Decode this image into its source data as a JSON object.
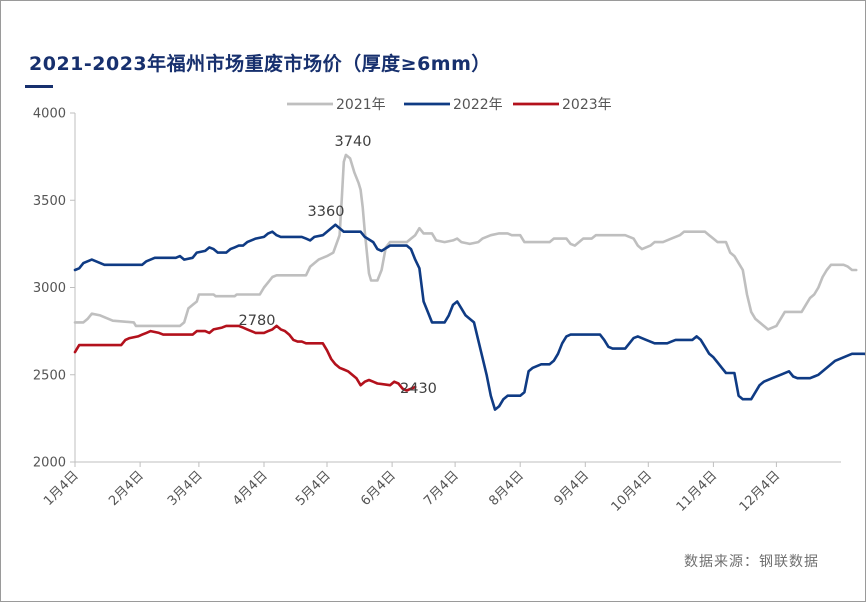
{
  "title": "2021-2023年福州市场重废市场价（厚度≥6mm）",
  "source": "数据来源：钢联数据",
  "chart_data": {
    "type": "line",
    "ylim": [
      2000,
      4000
    ],
    "yticks": [
      2000,
      2500,
      3000,
      3500,
      4000
    ],
    "x_range_days": [
      0,
      362
    ],
    "x_ticks": [
      {
        "day": 0,
        "label": "1月4日"
      },
      {
        "day": 31,
        "label": "2月4日"
      },
      {
        "day": 59,
        "label": "3月4日"
      },
      {
        "day": 90,
        "label": "4月4日"
      },
      {
        "day": 120,
        "label": "5月4日"
      },
      {
        "day": 151,
        "label": "6月4日"
      },
      {
        "day": 181,
        "label": "7月4日"
      },
      {
        "day": 212,
        "label": "8月4日"
      },
      {
        "day": 243,
        "label": "9月4日"
      },
      {
        "day": 273,
        "label": "10月4日"
      },
      {
        "day": 304,
        "label": "11月4日"
      },
      {
        "day": 334,
        "label": "12月4日"
      }
    ],
    "legend_position": "top",
    "series": [
      {
        "name": "2021年",
        "color": "#bfbfbf",
        "points": [
          [
            0,
            2800
          ],
          [
            4,
            2800
          ],
          [
            6,
            2820
          ],
          [
            8,
            2850
          ],
          [
            12,
            2840
          ],
          [
            14,
            2830
          ],
          [
            16,
            2820
          ],
          [
            18,
            2810
          ],
          [
            28,
            2800
          ],
          [
            29,
            2780
          ],
          [
            50,
            2780
          ],
          [
            52,
            2800
          ],
          [
            54,
            2880
          ],
          [
            56,
            2900
          ],
          [
            58,
            2920
          ],
          [
            59,
            2960
          ],
          [
            66,
            2960
          ],
          [
            67,
            2950
          ],
          [
            76,
            2950
          ],
          [
            77,
            2960
          ],
          [
            88,
            2960
          ],
          [
            90,
            3000
          ],
          [
            92,
            3030
          ],
          [
            94,
            3060
          ],
          [
            96,
            3070
          ],
          [
            110,
            3070
          ],
          [
            112,
            3120
          ],
          [
            114,
            3140
          ],
          [
            116,
            3160
          ],
          [
            120,
            3180
          ],
          [
            123,
            3200
          ],
          [
            126,
            3300
          ],
          [
            127,
            3500
          ],
          [
            128,
            3720
          ],
          [
            129,
            3760
          ],
          [
            131,
            3740
          ],
          [
            133,
            3660
          ],
          [
            135,
            3600
          ],
          [
            136,
            3560
          ],
          [
            137,
            3460
          ],
          [
            138,
            3320
          ],
          [
            139,
            3200
          ],
          [
            140,
            3080
          ],
          [
            141,
            3040
          ],
          [
            144,
            3040
          ],
          [
            146,
            3100
          ],
          [
            148,
            3230
          ],
          [
            150,
            3260
          ],
          [
            158,
            3260
          ],
          [
            160,
            3280
          ],
          [
            162,
            3300
          ],
          [
            164,
            3340
          ],
          [
            166,
            3310
          ],
          [
            170,
            3310
          ],
          [
            172,
            3270
          ],
          [
            176,
            3260
          ],
          [
            180,
            3270
          ],
          [
            182,
            3280
          ],
          [
            184,
            3260
          ],
          [
            188,
            3250
          ],
          [
            192,
            3260
          ],
          [
            194,
            3280
          ],
          [
            198,
            3300
          ],
          [
            202,
            3310
          ],
          [
            206,
            3310
          ],
          [
            208,
            3300
          ],
          [
            212,
            3300
          ],
          [
            214,
            3260
          ],
          [
            226,
            3260
          ],
          [
            228,
            3280
          ],
          [
            234,
            3280
          ],
          [
            236,
            3250
          ],
          [
            238,
            3240
          ],
          [
            240,
            3260
          ],
          [
            242,
            3280
          ],
          [
            246,
            3280
          ],
          [
            248,
            3300
          ],
          [
            260,
            3300
          ],
          [
            262,
            3300
          ],
          [
            266,
            3280
          ],
          [
            268,
            3240
          ],
          [
            270,
            3220
          ],
          [
            274,
            3240
          ],
          [
            276,
            3260
          ],
          [
            280,
            3260
          ],
          [
            284,
            3280
          ],
          [
            288,
            3300
          ],
          [
            290,
            3320
          ],
          [
            296,
            3320
          ],
          [
            300,
            3320
          ],
          [
            302,
            3300
          ],
          [
            304,
            3280
          ],
          [
            306,
            3260
          ],
          [
            310,
            3260
          ],
          [
            312,
            3200
          ],
          [
            314,
            3180
          ],
          [
            316,
            3140
          ],
          [
            318,
            3100
          ],
          [
            320,
            2960
          ],
          [
            322,
            2860
          ],
          [
            324,
            2820
          ],
          [
            326,
            2800
          ],
          [
            328,
            2780
          ],
          [
            330,
            2760
          ],
          [
            334,
            2780
          ],
          [
            336,
            2820
          ],
          [
            338,
            2860
          ],
          [
            346,
            2860
          ],
          [
            348,
            2900
          ],
          [
            350,
            2940
          ],
          [
            352,
            2960
          ],
          [
            354,
            3000
          ],
          [
            356,
            3060
          ],
          [
            358,
            3100
          ],
          [
            360,
            3130
          ],
          [
            362,
            3130
          ],
          [
            366,
            3130
          ],
          [
            368,
            3120
          ],
          [
            370,
            3100
          ],
          [
            372,
            3100
          ]
        ]
      },
      {
        "name": "2022年",
        "color": "#0f3b84",
        "points": [
          [
            0,
            3100
          ],
          [
            2,
            3110
          ],
          [
            4,
            3140
          ],
          [
            6,
            3150
          ],
          [
            8,
            3160
          ],
          [
            10,
            3150
          ],
          [
            12,
            3140
          ],
          [
            14,
            3130
          ],
          [
            32,
            3130
          ],
          [
            34,
            3150
          ],
          [
            36,
            3160
          ],
          [
            38,
            3170
          ],
          [
            48,
            3170
          ],
          [
            50,
            3180
          ],
          [
            52,
            3160
          ],
          [
            56,
            3170
          ],
          [
            58,
            3200
          ],
          [
            62,
            3210
          ],
          [
            64,
            3230
          ],
          [
            66,
            3220
          ],
          [
            68,
            3200
          ],
          [
            72,
            3200
          ],
          [
            74,
            3220
          ],
          [
            76,
            3230
          ],
          [
            78,
            3240
          ],
          [
            80,
            3240
          ],
          [
            82,
            3260
          ],
          [
            86,
            3280
          ],
          [
            90,
            3290
          ],
          [
            92,
            3310
          ],
          [
            94,
            3320
          ],
          [
            96,
            3300
          ],
          [
            98,
            3290
          ],
          [
            108,
            3290
          ],
          [
            110,
            3280
          ],
          [
            112,
            3270
          ],
          [
            114,
            3290
          ],
          [
            118,
            3300
          ],
          [
            120,
            3320
          ],
          [
            122,
            3340
          ],
          [
            124,
            3360
          ],
          [
            126,
            3340
          ],
          [
            128,
            3320
          ],
          [
            136,
            3320
          ],
          [
            138,
            3290
          ],
          [
            142,
            3260
          ],
          [
            144,
            3220
          ],
          [
            146,
            3210
          ],
          [
            150,
            3240
          ],
          [
            158,
            3240
          ],
          [
            160,
            3220
          ],
          [
            162,
            3160
          ],
          [
            164,
            3110
          ],
          [
            166,
            2920
          ],
          [
            168,
            2860
          ],
          [
            170,
            2800
          ],
          [
            176,
            2800
          ],
          [
            178,
            2840
          ],
          [
            180,
            2900
          ],
          [
            182,
            2920
          ],
          [
            184,
            2880
          ],
          [
            186,
            2840
          ],
          [
            188,
            2820
          ],
          [
            190,
            2800
          ],
          [
            192,
            2700
          ],
          [
            194,
            2600
          ],
          [
            196,
            2500
          ],
          [
            198,
            2380
          ],
          [
            200,
            2300
          ],
          [
            202,
            2320
          ],
          [
            204,
            2360
          ],
          [
            206,
            2380
          ],
          [
            212,
            2380
          ],
          [
            214,
            2400
          ],
          [
            216,
            2520
          ],
          [
            218,
            2540
          ],
          [
            222,
            2560
          ],
          [
            226,
            2560
          ],
          [
            228,
            2580
          ],
          [
            230,
            2620
          ],
          [
            232,
            2680
          ],
          [
            234,
            2720
          ],
          [
            236,
            2730
          ],
          [
            250,
            2730
          ],
          [
            252,
            2700
          ],
          [
            254,
            2660
          ],
          [
            256,
            2650
          ],
          [
            262,
            2650
          ],
          [
            264,
            2680
          ],
          [
            266,
            2710
          ],
          [
            268,
            2720
          ],
          [
            272,
            2700
          ],
          [
            276,
            2680
          ],
          [
            282,
            2680
          ],
          [
            284,
            2690
          ],
          [
            286,
            2700
          ],
          [
            294,
            2700
          ],
          [
            296,
            2720
          ],
          [
            298,
            2700
          ],
          [
            300,
            2660
          ],
          [
            302,
            2620
          ],
          [
            304,
            2600
          ],
          [
            306,
            2570
          ],
          [
            308,
            2540
          ],
          [
            310,
            2510
          ],
          [
            314,
            2510
          ],
          [
            316,
            2380
          ],
          [
            318,
            2360
          ],
          [
            322,
            2360
          ],
          [
            324,
            2400
          ],
          [
            326,
            2440
          ],
          [
            328,
            2460
          ],
          [
            332,
            2480
          ],
          [
            336,
            2500
          ],
          [
            340,
            2520
          ],
          [
            342,
            2490
          ],
          [
            344,
            2480
          ],
          [
            350,
            2480
          ],
          [
            352,
            2490
          ],
          [
            354,
            2500
          ],
          [
            356,
            2520
          ],
          [
            358,
            2540
          ],
          [
            360,
            2560
          ],
          [
            362,
            2580
          ],
          [
            366,
            2600
          ],
          [
            370,
            2620
          ],
          [
            376,
            2620
          ],
          [
            378,
            2610
          ],
          [
            380,
            2600
          ],
          [
            382,
            2600
          ],
          [
            384,
            2630
          ]
        ]
      },
      {
        "name": "2023年",
        "color": "#b3111c",
        "points": [
          [
            0,
            2630
          ],
          [
            2,
            2670
          ],
          [
            22,
            2670
          ],
          [
            24,
            2700
          ],
          [
            26,
            2710
          ],
          [
            30,
            2720
          ],
          [
            32,
            2730
          ],
          [
            34,
            2740
          ],
          [
            36,
            2750
          ],
          [
            40,
            2740
          ],
          [
            42,
            2730
          ],
          [
            56,
            2730
          ],
          [
            58,
            2750
          ],
          [
            62,
            2750
          ],
          [
            64,
            2740
          ],
          [
            66,
            2760
          ],
          [
            70,
            2770
          ],
          [
            72,
            2780
          ],
          [
            78,
            2780
          ],
          [
            80,
            2770
          ],
          [
            82,
            2760
          ],
          [
            86,
            2740
          ],
          [
            90,
            2740
          ],
          [
            92,
            2750
          ],
          [
            94,
            2760
          ],
          [
            96,
            2780
          ],
          [
            98,
            2760
          ],
          [
            100,
            2750
          ],
          [
            102,
            2730
          ],
          [
            104,
            2700
          ],
          [
            106,
            2690
          ],
          [
            108,
            2690
          ],
          [
            110,
            2680
          ],
          [
            118,
            2680
          ],
          [
            120,
            2640
          ],
          [
            122,
            2590
          ],
          [
            124,
            2560
          ],
          [
            126,
            2540
          ],
          [
            128,
            2530
          ],
          [
            130,
            2520
          ],
          [
            132,
            2500
          ],
          [
            134,
            2480
          ],
          [
            136,
            2440
          ],
          [
            138,
            2460
          ],
          [
            140,
            2470
          ],
          [
            142,
            2460
          ],
          [
            144,
            2450
          ],
          [
            150,
            2440
          ],
          [
            152,
            2460
          ],
          [
            154,
            2450
          ],
          [
            156,
            2420
          ],
          [
            158,
            2410
          ],
          [
            160,
            2420
          ],
          [
            162,
            2430
          ]
        ]
      }
    ],
    "annotations": [
      {
        "text": "3740",
        "series": "2021年"
      },
      {
        "text": "3360",
        "series": "2022年"
      },
      {
        "text": "2780",
        "series": "2023年"
      },
      {
        "text": "2430",
        "series": "2023年"
      }
    ]
  }
}
